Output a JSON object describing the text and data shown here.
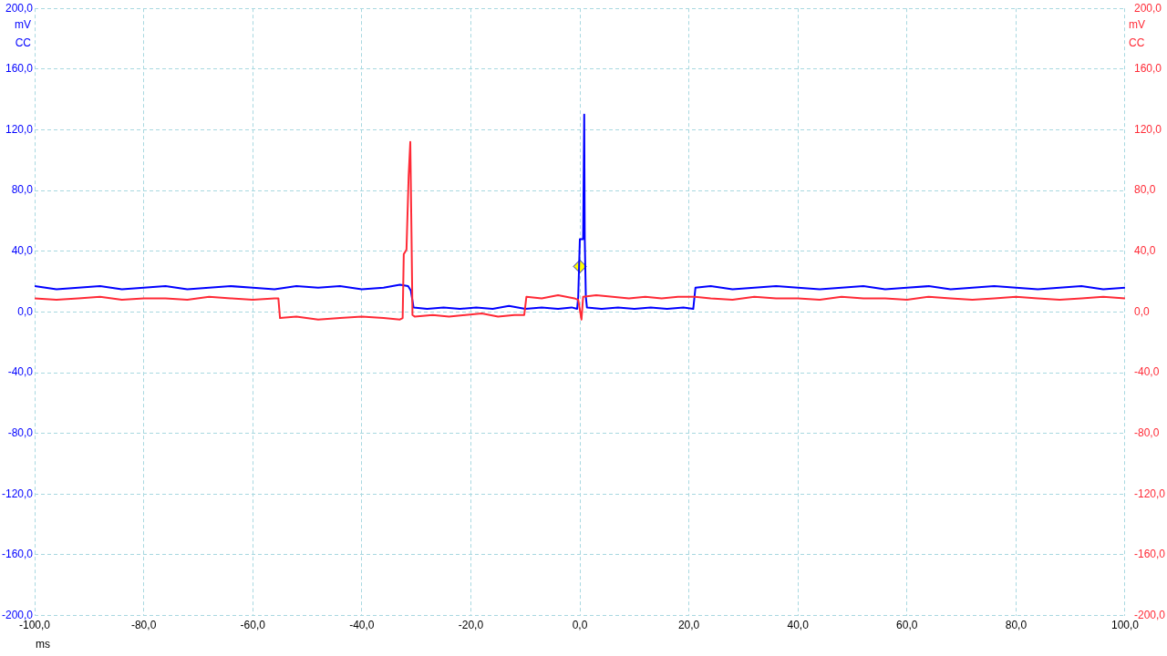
{
  "chart_data": {
    "type": "line",
    "xlabel": "ms",
    "ylabel": "mV\nCC",
    "y2label": "mV\nCC",
    "xlim": [
      -100,
      100
    ],
    "xticks": [
      {
        "value": -100,
        "label": "-100,0"
      },
      {
        "value": -80,
        "label": "-80,0"
      },
      {
        "value": -60,
        "label": "-60,0"
      },
      {
        "value": -40,
        "label": "-40,0"
      },
      {
        "value": -20,
        "label": "-20,0"
      },
      {
        "value": 0,
        "label": "0,0"
      },
      {
        "value": 20,
        "label": "20,0"
      },
      {
        "value": 40,
        "label": "40,0"
      },
      {
        "value": 60,
        "label": "60,0"
      },
      {
        "value": 80,
        "label": "80,0"
      },
      {
        "value": 100,
        "label": "100,0"
      }
    ],
    "ylim": [
      -200,
      200
    ],
    "yticks": [
      {
        "value": -200,
        "label": "-200,0"
      },
      {
        "value": -160,
        "label": "-160,0"
      },
      {
        "value": -120,
        "label": "-120,0"
      },
      {
        "value": -80,
        "label": "-80,0"
      },
      {
        "value": -40,
        "label": "-40,0"
      },
      {
        "value": 0,
        "label": "0,0"
      },
      {
        "value": 40,
        "label": "40,0"
      },
      {
        "value": 80,
        "label": "80,0"
      },
      {
        "value": 120,
        "label": "120,0"
      },
      {
        "value": 160,
        "label": "160,0"
      },
      {
        "value": 200,
        "label": "200,0"
      }
    ],
    "y2lim": [
      -200,
      200
    ],
    "y2ticks": [
      {
        "value": -200,
        "label": "-200,0"
      },
      {
        "value": -160,
        "label": "-160,0"
      },
      {
        "value": -120,
        "label": "-120,0"
      },
      {
        "value": -80,
        "label": "-80,0"
      },
      {
        "value": -40,
        "label": "-40,0"
      },
      {
        "value": 0,
        "label": "0,0"
      },
      {
        "value": 40,
        "label": "40,0"
      },
      {
        "value": 80,
        "label": "80,0"
      },
      {
        "value": 120,
        "label": "120,0"
      },
      {
        "value": 160,
        "label": "160,0"
      },
      {
        "value": 200,
        "label": "200,0"
      }
    ],
    "grid": true,
    "legend": false,
    "marker": "none",
    "line_style": "solid",
    "series": [
      {
        "color": "#ff2a36",
        "axis": "y2",
        "x": [
          -100,
          -96,
          -92,
          -88,
          -84,
          -80,
          -76,
          -72,
          -68,
          -64,
          -60,
          -56,
          -55.3,
          -55,
          -52,
          -48,
          -44,
          -40,
          -36,
          -33,
          -32.5,
          -32.3,
          -31.8,
          -31.4,
          -31.1,
          -30.9,
          -30.7,
          -30.3,
          -27,
          -24,
          -21,
          -18,
          -15,
          -12,
          -10.2,
          -9.8,
          -7,
          -4,
          -1,
          -0.3,
          0.3,
          0.6,
          3,
          6,
          9,
          12,
          15,
          18,
          21,
          24,
          28,
          32,
          36,
          40,
          44,
          48,
          52,
          56,
          60,
          64,
          68,
          72,
          76,
          80,
          84,
          88,
          92,
          96,
          100
        ],
        "values": [
          9,
          8,
          9,
          10,
          8,
          9,
          9,
          8,
          10,
          9,
          8,
          9,
          9,
          -4,
          -3,
          -5,
          -4,
          -3,
          -4,
          -5,
          -4,
          38,
          41,
          90,
          112,
          57,
          -2,
          -3,
          -2,
          -3,
          -2,
          -1,
          -3,
          -2,
          -2,
          10,
          9,
          11,
          9,
          8,
          -5,
          10,
          11,
          10,
          9,
          10,
          9,
          10,
          10,
          9,
          8,
          10,
          9,
          9,
          8,
          10,
          9,
          9,
          8,
          10,
          9,
          8,
          9,
          10,
          9,
          8,
          9,
          10,
          9
        ]
      },
      {
        "color": "#0000ff",
        "axis": "y",
        "x": [
          -100,
          -96,
          -92,
          -88,
          -84,
          -80,
          -76,
          -72,
          -68,
          -64,
          -60,
          -56,
          -52,
          -48,
          -44,
          -40,
          -36,
          -33,
          -31.5,
          -31,
          -30.5,
          -28,
          -25,
          -22,
          -19,
          -16,
          -13,
          -10,
          -7,
          -4,
          -1.5,
          -0.5,
          -0.3,
          0,
          0.6,
          0.8,
          0.9,
          1.1,
          1.3,
          4,
          7,
          10,
          13,
          16,
          19,
          20.8,
          21.2,
          24,
          28,
          32,
          36,
          40,
          44,
          48,
          52,
          56,
          60,
          64,
          68,
          72,
          76,
          80,
          84,
          88,
          92,
          96,
          100
        ],
        "values": [
          17,
          15,
          16,
          17,
          15,
          16,
          17,
          15,
          16,
          17,
          16,
          15,
          17,
          16,
          17,
          15,
          16,
          18,
          17,
          14,
          3,
          2,
          3,
          2,
          3,
          2,
          4,
          2,
          3,
          2,
          3,
          2,
          10,
          48,
          48,
          130,
          48,
          10,
          3,
          2,
          3,
          2,
          3,
          2,
          3,
          2,
          16,
          17,
          15,
          16,
          17,
          16,
          15,
          16,
          17,
          15,
          16,
          17,
          15,
          16,
          17,
          16,
          15,
          16,
          17,
          15,
          16
        ]
      },
      {
        "type": "scatter",
        "color": "#ffff00",
        "axis": "y",
        "marker": "diamond",
        "x": [
          0
        ],
        "values": [
          30
        ]
      }
    ]
  }
}
